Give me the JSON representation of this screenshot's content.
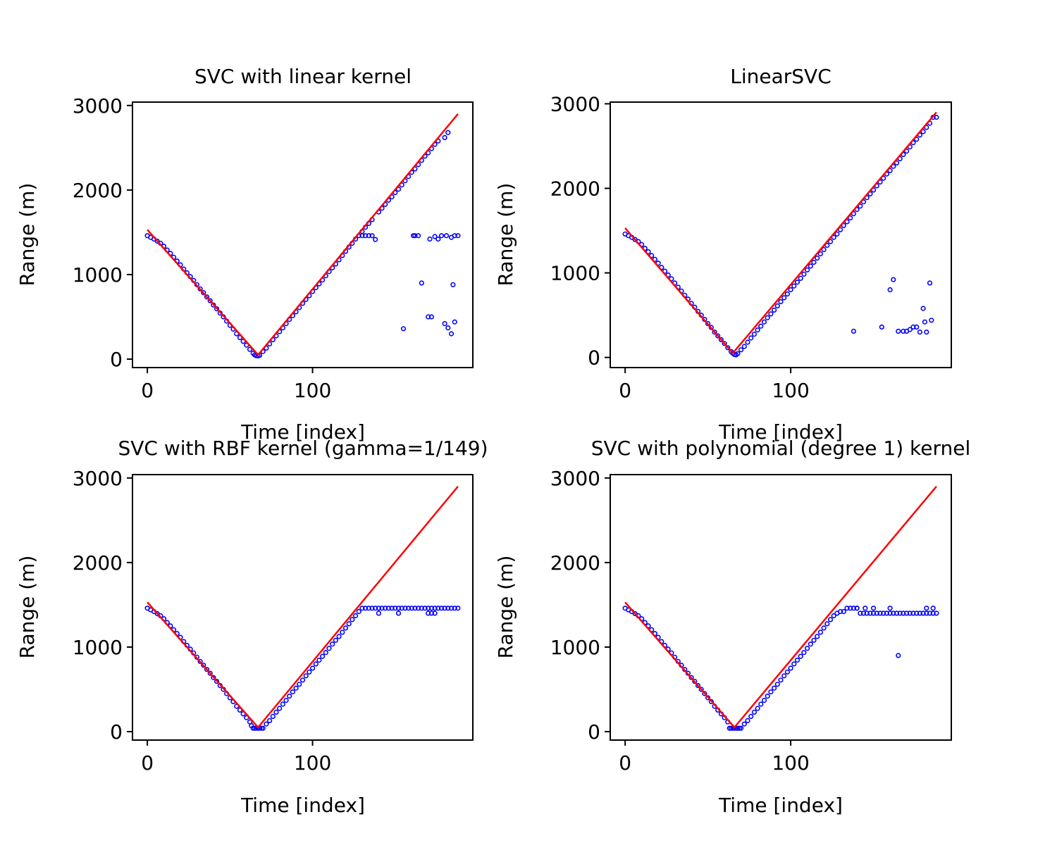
{
  "chart_data": [
    {
      "type": "scatter",
      "title": "SVC with linear kernel",
      "xlabel": "Time [index]",
      "ylabel": "Range (m)",
      "xlim": [
        -9,
        197
      ],
      "ylim": [
        -100,
        3040
      ],
      "xticks": [
        0,
        100
      ],
      "yticks": [
        0,
        1000,
        2000,
        3000
      ],
      "marker_color": "#0000ff",
      "line_color": "#ff0000",
      "fit_line": {
        "x": [
          0,
          67,
          188
        ],
        "y": [
          1530,
          50,
          2900
        ]
      },
      "series": [
        {
          "x": [
            0,
            2,
            4,
            6,
            8,
            10,
            12,
            14,
            16,
            18,
            20,
            22,
            24,
            26,
            28,
            30,
            32,
            34,
            36,
            38,
            40,
            42,
            44,
            46,
            48,
            50,
            52,
            54,
            56,
            58,
            60,
            62,
            64,
            65,
            66,
            67,
            68,
            70,
            72,
            74,
            76,
            78,
            80,
            82,
            84,
            86,
            88,
            90,
            92,
            94,
            96,
            98,
            100,
            102,
            104,
            106,
            108,
            110,
            112,
            114,
            116,
            118,
            120,
            122,
            124,
            126,
            128,
            130,
            132,
            134,
            136,
            140,
            142,
            144,
            146,
            148,
            150,
            152,
            154,
            156,
            158,
            160,
            162,
            164,
            166,
            168,
            170,
            172,
            174,
            176,
            180,
            182,
            130,
            132,
            134,
            136,
            138,
            161,
            162,
            164,
            171,
            174,
            176,
            178,
            181,
            184,
            186,
            188,
            166,
            155,
            170,
            172,
            180,
            182,
            184,
            185,
            186
          ],
          "y": [
            1460,
            1440,
            1420,
            1395,
            1370,
            1335,
            1290,
            1250,
            1205,
            1160,
            1115,
            1065,
            1020,
            975,
            930,
            880,
            830,
            785,
            735,
            690,
            640,
            595,
            545,
            500,
            450,
            400,
            355,
            300,
            255,
            210,
            165,
            115,
            70,
            50,
            40,
            38,
            45,
            90,
            130,
            180,
            230,
            275,
            325,
            370,
            420,
            470,
            515,
            560,
            610,
            660,
            705,
            750,
            800,
            845,
            890,
            935,
            985,
            1035,
            1080,
            1125,
            1175,
            1225,
            1275,
            1325,
            1370,
            1420,
            1460,
            1510,
            1560,
            1605,
            1650,
            1740,
            1785,
            1830,
            1880,
            1920,
            1970,
            2010,
            2060,
            2110,
            2160,
            2210,
            2250,
            2300,
            2350,
            2400,
            2440,
            2490,
            2540,
            2580,
            2620,
            2680,
            1460,
            1460,
            1460,
            1460,
            1415,
            1460,
            1460,
            1460,
            1420,
            1450,
            1420,
            1460,
            1460,
            1440,
            1460,
            1460,
            900,
            360,
            500,
            500,
            420,
            370,
            300,
            880,
            440
          ]
        }
      ]
    },
    {
      "type": "scatter",
      "title": "LinearSVC",
      "xlabel": "Time [index]",
      "ylabel": "Range (m)",
      "xlim": [
        -9,
        197
      ],
      "ylim": [
        -120,
        3020
      ],
      "xticks": [
        0,
        100
      ],
      "yticks": [
        0,
        1000,
        2000,
        3000
      ],
      "marker_color": "#0000ff",
      "line_color": "#ff0000",
      "fit_line": {
        "x": [
          0,
          65,
          188
        ],
        "y": [
          1530,
          50,
          2900
        ]
      },
      "series": [
        {
          "x": [
            0,
            2,
            4,
            6,
            8,
            10,
            12,
            14,
            16,
            18,
            20,
            22,
            24,
            26,
            28,
            30,
            32,
            34,
            36,
            38,
            40,
            42,
            44,
            46,
            48,
            50,
            52,
            54,
            56,
            58,
            60,
            62,
            64,
            65,
            66,
            67,
            68,
            70,
            72,
            74,
            76,
            78,
            80,
            82,
            84,
            86,
            88,
            90,
            92,
            94,
            96,
            98,
            100,
            102,
            104,
            106,
            108,
            110,
            112,
            114,
            116,
            118,
            120,
            122,
            124,
            126,
            128,
            130,
            132,
            134,
            136,
            138,
            140,
            142,
            144,
            146,
            148,
            150,
            152,
            154,
            156,
            158,
            160,
            162,
            164,
            166,
            168,
            170,
            172,
            174,
            176,
            178,
            180,
            182,
            184,
            186,
            188,
            138,
            155,
            160,
            162,
            165,
            168,
            170,
            172,
            174,
            176,
            178,
            180,
            181,
            182,
            184,
            185
          ],
          "y": [
            1460,
            1440,
            1420,
            1395,
            1370,
            1335,
            1290,
            1250,
            1205,
            1160,
            1115,
            1065,
            1020,
            975,
            930,
            880,
            830,
            785,
            735,
            690,
            640,
            595,
            545,
            500,
            450,
            400,
            355,
            300,
            255,
            210,
            165,
            115,
            70,
            50,
            35,
            30,
            45,
            90,
            130,
            180,
            230,
            275,
            325,
            370,
            420,
            470,
            515,
            560,
            610,
            660,
            705,
            750,
            800,
            845,
            890,
            935,
            985,
            1035,
            1080,
            1125,
            1175,
            1225,
            1275,
            1325,
            1370,
            1420,
            1460,
            1510,
            1560,
            1605,
            1650,
            1700,
            1750,
            1790,
            1840,
            1890,
            1935,
            1980,
            2030,
            2075,
            2120,
            2170,
            2210,
            2260,
            2300,
            2350,
            2400,
            2440,
            2490,
            2540,
            2580,
            2630,
            2670,
            2720,
            2770,
            2840,
            2840,
            310,
            360,
            800,
            920,
            310,
            310,
            310,
            330,
            360,
            360,
            300,
            580,
            420,
            300,
            880,
            440
          ]
        }
      ]
    },
    {
      "type": "scatter",
      "title": "SVC with RBF kernel (gamma=1/149)",
      "xlabel": "Time [index]",
      "ylabel": "Range (m)",
      "xlim": [
        -9,
        197
      ],
      "ylim": [
        -100,
        3040
      ],
      "xticks": [
        0,
        100
      ],
      "yticks": [
        0,
        1000,
        2000,
        3000
      ],
      "marker_color": "#0000ff",
      "line_color": "#ff0000",
      "fit_line": {
        "x": [
          0,
          67,
          188
        ],
        "y": [
          1530,
          50,
          2900
        ]
      },
      "series": [
        {
          "x": [
            0,
            2,
            4,
            6,
            8,
            10,
            12,
            14,
            16,
            18,
            20,
            22,
            24,
            26,
            28,
            30,
            32,
            34,
            36,
            38,
            40,
            42,
            44,
            46,
            48,
            50,
            52,
            54,
            56,
            58,
            60,
            62,
            63,
            64,
            65,
            66,
            67,
            68,
            69,
            70,
            72,
            74,
            76,
            78,
            80,
            82,
            84,
            86,
            88,
            90,
            92,
            94,
            96,
            98,
            100,
            102,
            104,
            106,
            108,
            110,
            112,
            114,
            116,
            118,
            120,
            122,
            124,
            126,
            128,
            130,
            132,
            134,
            136,
            138,
            140,
            142,
            144,
            146,
            148,
            150,
            152,
            154,
            156,
            158,
            160,
            162,
            164,
            166,
            168,
            170,
            172,
            174,
            176,
            178,
            180,
            182,
            184,
            186,
            188,
            140,
            152,
            170,
            172,
            174
          ],
          "y": [
            1460,
            1440,
            1420,
            1395,
            1370,
            1335,
            1290,
            1250,
            1205,
            1160,
            1115,
            1065,
            1020,
            975,
            930,
            880,
            830,
            785,
            735,
            690,
            640,
            595,
            545,
            500,
            450,
            400,
            355,
            300,
            255,
            210,
            165,
            115,
            70,
            40,
            40,
            40,
            40,
            40,
            40,
            40,
            90,
            130,
            180,
            230,
            275,
            325,
            370,
            420,
            470,
            515,
            560,
            610,
            660,
            705,
            750,
            800,
            845,
            890,
            935,
            985,
            1035,
            1080,
            1125,
            1175,
            1225,
            1275,
            1325,
            1370,
            1420,
            1460,
            1460,
            1460,
            1460,
            1460,
            1460,
            1460,
            1460,
            1460,
            1460,
            1460,
            1460,
            1460,
            1460,
            1460,
            1460,
            1460,
            1460,
            1460,
            1460,
            1460,
            1460,
            1460,
            1460,
            1460,
            1460,
            1460,
            1460,
            1460,
            1460,
            1400,
            1400,
            1400,
            1400,
            1400
          ]
        }
      ]
    },
    {
      "type": "scatter",
      "title": "SVC with polynomial (degree 1) kernel",
      "xlabel": "Time [index]",
      "ylabel": "Range (m)",
      "xlim": [
        -9,
        197
      ],
      "ylim": [
        -100,
        3040
      ],
      "xticks": [
        0,
        100
      ],
      "yticks": [
        0,
        1000,
        2000,
        3000
      ],
      "marker_color": "#0000ff",
      "line_color": "#ff0000",
      "fit_line": {
        "x": [
          0,
          66,
          188
        ],
        "y": [
          1530,
          50,
          2900
        ]
      },
      "series": [
        {
          "x": [
            0,
            2,
            4,
            6,
            8,
            10,
            12,
            14,
            16,
            18,
            20,
            22,
            24,
            26,
            28,
            30,
            32,
            34,
            36,
            38,
            40,
            42,
            44,
            46,
            48,
            50,
            52,
            54,
            56,
            58,
            60,
            62,
            63,
            64,
            65,
            66,
            67,
            68,
            69,
            70,
            72,
            74,
            76,
            78,
            80,
            82,
            84,
            86,
            88,
            90,
            92,
            94,
            96,
            98,
            100,
            102,
            104,
            106,
            108,
            110,
            112,
            114,
            116,
            118,
            120,
            122,
            124,
            126,
            128,
            130,
            132,
            134,
            136,
            138,
            140,
            142,
            144,
            146,
            148,
            150,
            152,
            154,
            156,
            158,
            160,
            162,
            164,
            166,
            168,
            170,
            172,
            174,
            176,
            178,
            180,
            182,
            184,
            186,
            188,
            140,
            145,
            150,
            160,
            182,
            186,
            165
          ],
          "y": [
            1460,
            1440,
            1420,
            1395,
            1370,
            1335,
            1290,
            1250,
            1205,
            1160,
            1115,
            1065,
            1020,
            975,
            930,
            880,
            830,
            785,
            735,
            690,
            640,
            595,
            545,
            500,
            450,
            400,
            355,
            300,
            255,
            210,
            165,
            115,
            40,
            40,
            40,
            40,
            40,
            40,
            40,
            40,
            90,
            130,
            180,
            230,
            275,
            325,
            370,
            420,
            470,
            515,
            560,
            610,
            660,
            705,
            750,
            800,
            845,
            890,
            935,
            985,
            1035,
            1080,
            1125,
            1175,
            1225,
            1275,
            1325,
            1370,
            1400,
            1420,
            1420,
            1460,
            1460,
            1460,
            1460,
            1400,
            1400,
            1400,
            1400,
            1400,
            1400,
            1400,
            1400,
            1400,
            1400,
            1400,
            1400,
            1400,
            1400,
            1400,
            1400,
            1400,
            1400,
            1400,
            1400,
            1400,
            1400,
            1400,
            1400,
            1460,
            1460,
            1460,
            1460,
            1460,
            1460,
            900
          ]
        }
      ]
    }
  ]
}
